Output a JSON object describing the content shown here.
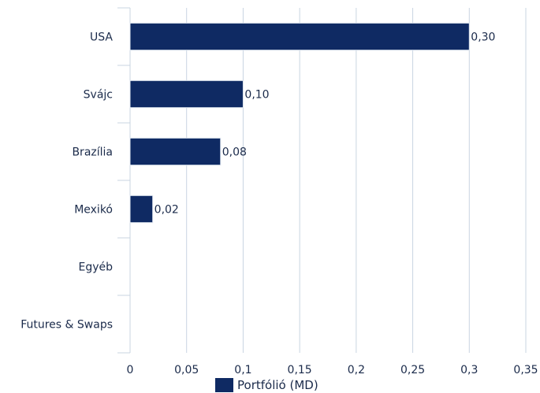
{
  "chart_data": {
    "type": "bar",
    "orientation": "horizontal",
    "categories": [
      "USA",
      "Svájc",
      "Brazília",
      "Mexikó",
      "Egyéb",
      "Futures & Swaps"
    ],
    "series": [
      {
        "name": "Portfólió (MD)",
        "values": [
          0.3,
          0.1,
          0.08,
          0.02,
          null,
          null
        ]
      }
    ],
    "data_labels": [
      "0,30",
      "0,10",
      "0,08",
      "0,02",
      "",
      ""
    ],
    "x_ticks": [
      "0",
      "0,05",
      "0,1",
      "0,15",
      "0,2",
      "0,25",
      "0,3",
      "0,35"
    ],
    "xlim": [
      0,
      0.35
    ],
    "grid": true,
    "legend_position": "bottom",
    "bar_color": "#0f2a63",
    "grid_color": "#c9d4e2"
  },
  "legend": {
    "label": "Portfólió (MD)"
  }
}
